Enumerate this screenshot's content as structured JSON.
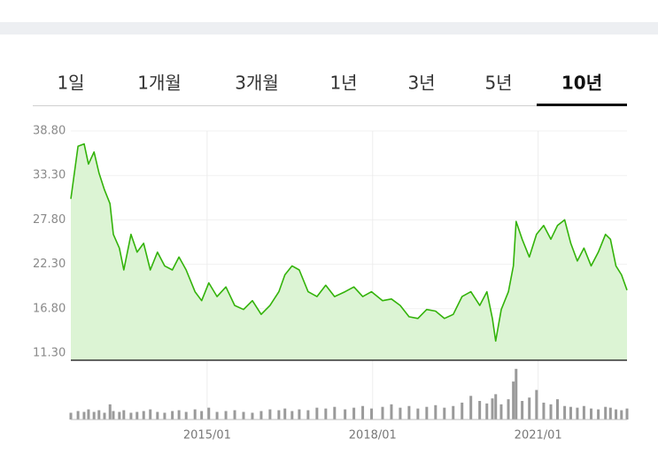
{
  "tabs": {
    "items": [
      "1일",
      "1개월",
      "3개월",
      "1년",
      "3년",
      "5년",
      "10년"
    ],
    "selected": 6
  },
  "chart_data": [
    {
      "type": "line",
      "color": "#33b30a",
      "fill": "#dcf4d4",
      "x": [
        2012.53,
        2012.66,
        2012.77,
        2012.85,
        2012.95,
        2013.04,
        2013.14,
        2013.24,
        2013.3,
        2013.41,
        2013.49,
        2013.62,
        2013.73,
        2013.85,
        2013.97,
        2014.1,
        2014.23,
        2014.37,
        2014.49,
        2014.62,
        2014.78,
        2014.9,
        2015.03,
        2015.18,
        2015.34,
        2015.5,
        2015.66,
        2015.82,
        2015.98,
        2016.14,
        2016.3,
        2016.41,
        2016.54,
        2016.67,
        2016.83,
        2016.99,
        2017.15,
        2017.31,
        2017.5,
        2017.66,
        2017.82,
        2017.98,
        2018.18,
        2018.34,
        2018.5,
        2018.66,
        2018.82,
        2018.98,
        2019.14,
        2019.3,
        2019.46,
        2019.62,
        2019.78,
        2019.94,
        2020.07,
        2020.17,
        2020.23,
        2020.33,
        2020.46,
        2020.55,
        2020.6,
        2020.71,
        2020.84,
        2020.97,
        2021.1,
        2021.23,
        2021.35,
        2021.48,
        2021.59,
        2021.71,
        2021.83,
        2021.96,
        2022.09,
        2022.22,
        2022.31,
        2022.41,
        2022.51,
        2022.61
      ],
      "values": [
        30.4,
        36.9,
        37.2,
        34.7,
        36.2,
        33.6,
        31.5,
        29.8,
        26.0,
        24.3,
        21.6,
        26.0,
        23.8,
        24.9,
        21.6,
        23.8,
        22.1,
        21.6,
        23.2,
        21.6,
        18.9,
        17.8,
        20.0,
        18.3,
        19.5,
        17.2,
        16.7,
        17.8,
        16.1,
        17.2,
        18.9,
        21.0,
        22.1,
        21.6,
        18.9,
        18.3,
        19.7,
        18.3,
        18.9,
        19.5,
        18.3,
        18.9,
        17.8,
        18.0,
        17.2,
        15.8,
        15.6,
        16.7,
        16.5,
        15.6,
        16.1,
        18.3,
        18.9,
        17.2,
        18.9,
        15.6,
        12.8,
        16.7,
        18.9,
        22.1,
        27.6,
        25.4,
        23.2,
        26.0,
        27.1,
        25.4,
        27.1,
        27.8,
        24.9,
        22.7,
        24.3,
        22.1,
        23.8,
        26.0,
        25.4,
        22.1,
        21.0,
        19.1
      ],
      "xlim": [
        2012.53,
        2022.61
      ],
      "ylim": [
        11.3,
        38.8
      ],
      "yticks": [
        {
          "value": 38.8,
          "label": "38.80"
        },
        {
          "value": 33.3,
          "label": "33.30"
        },
        {
          "value": 27.8,
          "label": "27.80"
        },
        {
          "value": 22.3,
          "label": "22.30"
        },
        {
          "value": 16.8,
          "label": "16.80"
        },
        {
          "value": 11.3,
          "label": "11.30"
        }
      ],
      "xticks": [
        {
          "value": 2015,
          "label": "2015/01"
        },
        {
          "value": 2018,
          "label": "2018/01"
        },
        {
          "value": 2021,
          "label": "2021/01"
        }
      ],
      "grid": true
    },
    {
      "type": "bar",
      "color": "#9a9a9a",
      "x": [
        2012.53,
        2012.66,
        2012.77,
        2012.85,
        2012.95,
        2013.04,
        2013.14,
        2013.24,
        2013.3,
        2013.41,
        2013.49,
        2013.62,
        2013.73,
        2013.85,
        2013.97,
        2014.1,
        2014.23,
        2014.37,
        2014.49,
        2014.62,
        2014.78,
        2014.9,
        2015.03,
        2015.18,
        2015.34,
        2015.5,
        2015.66,
        2015.82,
        2015.98,
        2016.14,
        2016.3,
        2016.41,
        2016.54,
        2016.67,
        2016.83,
        2016.99,
        2017.15,
        2017.31,
        2017.5,
        2017.66,
        2017.82,
        2017.98,
        2018.18,
        2018.34,
        2018.5,
        2018.66,
        2018.82,
        2018.98,
        2019.14,
        2019.3,
        2019.46,
        2019.62,
        2019.78,
        2019.94,
        2020.07,
        2020.17,
        2020.23,
        2020.33,
        2020.46,
        2020.55,
        2020.6,
        2020.71,
        2020.84,
        2020.97,
        2021.1,
        2021.23,
        2021.35,
        2021.48,
        2021.59,
        2021.71,
        2021.83,
        2021.96,
        2022.09,
        2022.22,
        2022.31,
        2022.41,
        2022.51,
        2022.61
      ],
      "values": [
        8,
        10,
        9,
        12,
        9,
        11,
        8,
        18,
        10,
        9,
        11,
        8,
        9,
        10,
        12,
        9,
        8,
        10,
        11,
        9,
        12,
        10,
        14,
        9,
        10,
        11,
        9,
        8,
        10,
        12,
        11,
        13,
        10,
        12,
        11,
        14,
        13,
        15,
        12,
        14,
        16,
        13,
        15,
        18,
        14,
        16,
        13,
        15,
        17,
        14,
        16,
        20,
        28,
        22,
        19,
        25,
        30,
        18,
        24,
        45,
        60,
        22,
        26,
        35,
        20,
        18,
        24,
        16,
        15,
        14,
        16,
        13,
        12,
        15,
        14,
        12,
        11,
        13
      ],
      "xlim": [
        2012.53,
        2022.61
      ],
      "ylim": [
        0,
        65
      ]
    }
  ]
}
